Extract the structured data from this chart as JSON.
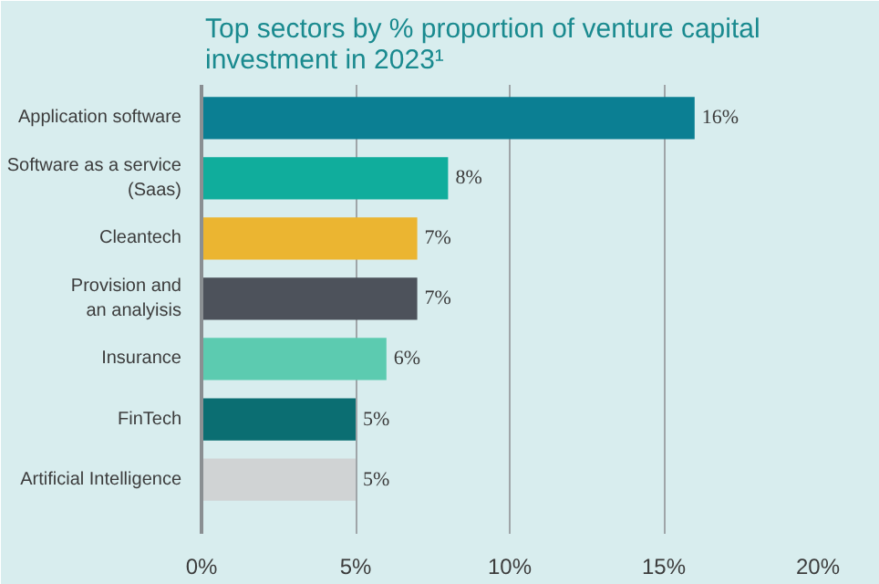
{
  "chart_data": {
    "type": "bar",
    "orientation": "horizontal",
    "title": "Top sectors by % proportion of venture capital\ninvestment in 2023¹",
    "categories": [
      "Application software",
      "Software as a service\n(Saas)",
      "Cleantech",
      "Provision and\nan analyisis",
      "Insurance",
      "FinTech",
      "Artificial Intelligence"
    ],
    "values": [
      16,
      8,
      7,
      7,
      6,
      5,
      5
    ],
    "value_labels": [
      "16%",
      "8%",
      "7%",
      "7%",
      "6%",
      "5%",
      "5%"
    ],
    "colors": [
      "#0b7f93",
      "#10ad9c",
      "#ebb531",
      "#4d525b",
      "#5ccbb0",
      "#0b6e72",
      "#d0d3d4"
    ],
    "xlim": [
      0,
      20
    ],
    "xticks": [
      {
        "value": 0,
        "label": "0%"
      },
      {
        "value": 5,
        "label": "5%"
      },
      {
        "value": 10,
        "label": "10%"
      },
      {
        "value": 15,
        "label": "15%"
      },
      {
        "value": 20,
        "label": "20%"
      }
    ],
    "grid": "x"
  }
}
